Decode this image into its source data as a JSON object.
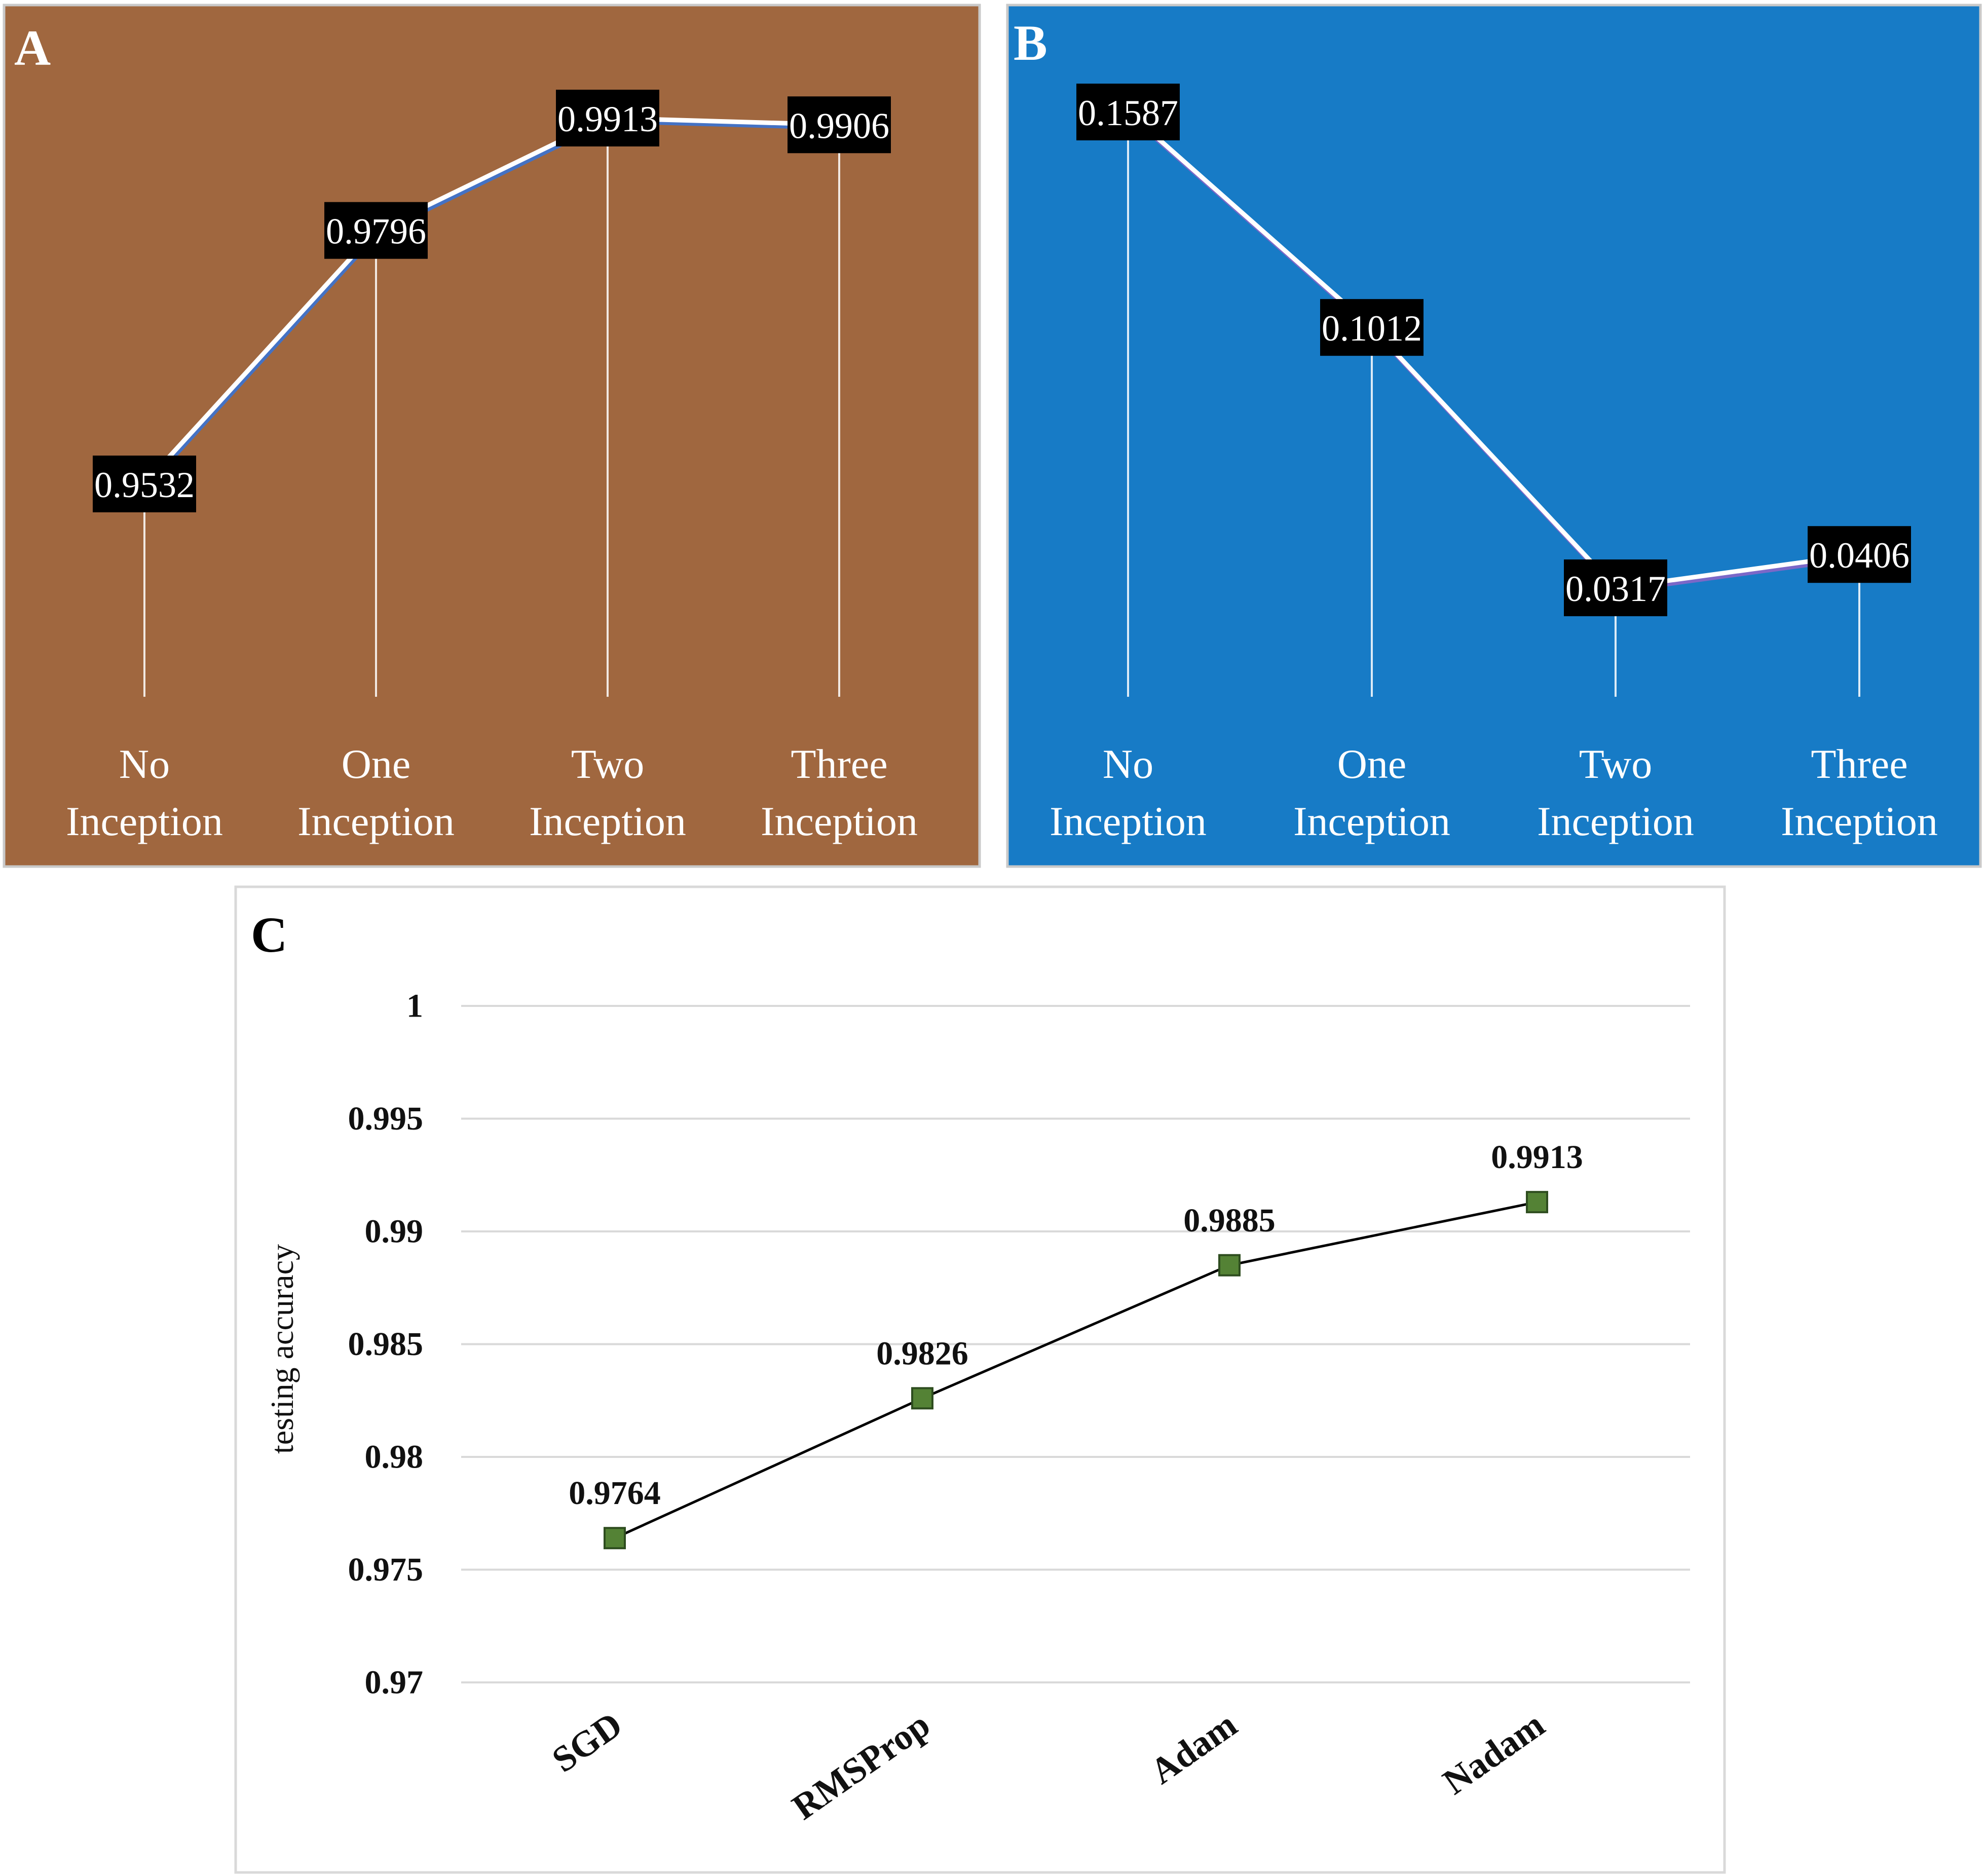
{
  "chart_data": [
    {
      "panel": "A",
      "type": "line",
      "categories": [
        [
          "No",
          "Inception"
        ],
        [
          "One",
          "Inception"
        ],
        [
          "Two",
          "Inception"
        ],
        [
          "Three",
          "Inception"
        ]
      ],
      "values": [
        0.9532,
        0.9796,
        0.9913,
        0.9906
      ],
      "data_labels": [
        "0.9532",
        "0.9796",
        "0.9913",
        "0.9906"
      ],
      "background": "#a0673f",
      "line_color": "#ffffff",
      "line_shadow": "#4472c4"
    },
    {
      "panel": "B",
      "type": "line",
      "categories": [
        [
          "No",
          "Inception"
        ],
        [
          "One",
          "Inception"
        ],
        [
          "Two",
          "Inception"
        ],
        [
          "Three",
          "Inception"
        ]
      ],
      "values": [
        0.1587,
        0.1012,
        0.0317,
        0.0406
      ],
      "data_labels": [
        "0.1587",
        "0.1012",
        "0.0317",
        "0.0406"
      ],
      "background": "#177bc6",
      "line_color": "#ffffff",
      "line_shadow": "#7b68c8"
    },
    {
      "panel": "C",
      "type": "line",
      "categories": [
        "SGD",
        "RMSProp",
        "Adam",
        "Nadam"
      ],
      "values": [
        0.9764,
        0.9826,
        0.9885,
        0.9913
      ],
      "data_labels": [
        "0.9764",
        "0.9826",
        "0.9885",
        "0.9913"
      ],
      "ylabel": "testing accuracy",
      "ylim": [
        0.97,
        1
      ],
      "yticks": [
        0.97,
        0.975,
        0.98,
        0.985,
        0.99,
        0.995,
        1
      ],
      "ytick_labels": [
        "0.97",
        "0.975",
        "0.98",
        "0.985",
        "0.99",
        "0.995",
        "1"
      ],
      "grid": true,
      "marker_color": "#548235",
      "line_color": "#000000"
    }
  ]
}
